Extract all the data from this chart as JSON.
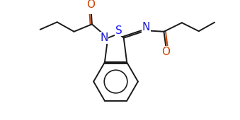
{
  "bg_color": "#ffffff",
  "line_color": "#1a1a1a",
  "atom_colors": {
    "S": "#1a1aff",
    "N": "#1a1acd",
    "O": "#cc4400"
  },
  "line_width": 1.4,
  "font_size_atoms": 10,
  "figsize": [
    3.39,
    1.7
  ],
  "dpi": 100,
  "xlim": [
    0,
    10
  ],
  "ylim": [
    0,
    5
  ]
}
